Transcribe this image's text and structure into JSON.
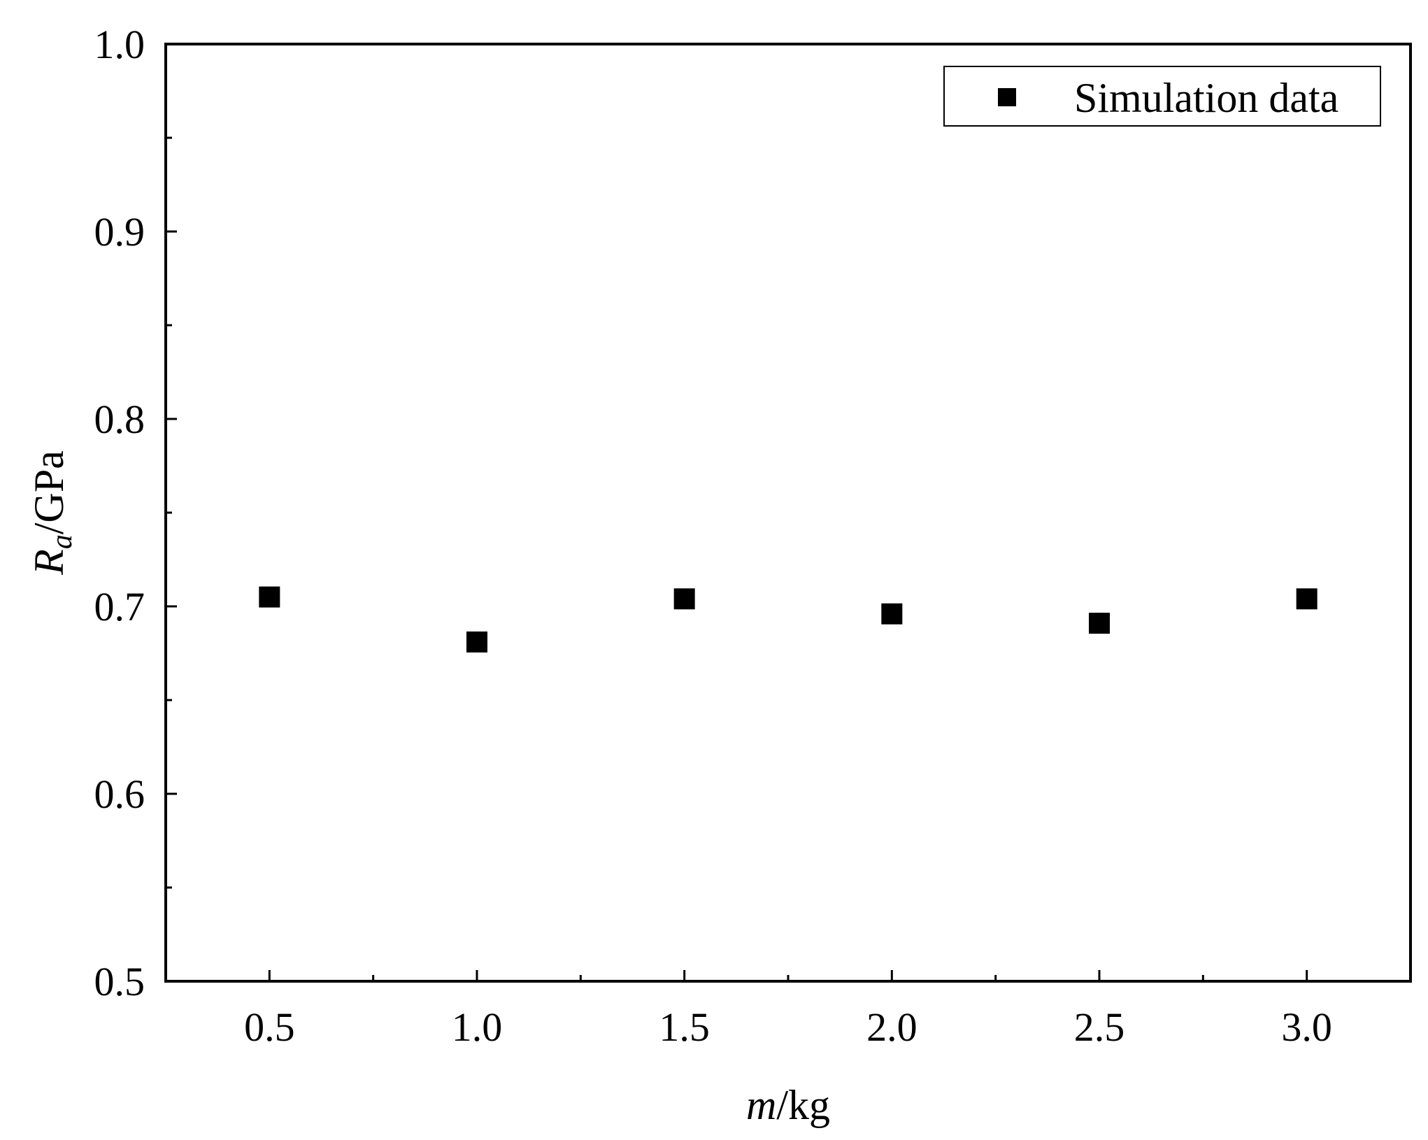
{
  "chart_data": {
    "type": "scatter",
    "x_axis": {
      "label_var": "m",
      "label_unit": "/kg",
      "range": [
        0.25,
        3.25
      ],
      "ticks": [
        "0.5",
        "1.0",
        "1.5",
        "2.0",
        "2.5",
        "3.0"
      ],
      "tick_values": [
        0.5,
        1.0,
        1.5,
        2.0,
        2.5,
        3.0
      ],
      "minor_ticks": [
        0.75,
        1.25,
        1.75,
        2.25,
        2.75
      ]
    },
    "y_axis": {
      "label_var": "R",
      "label_sub": "a",
      "label_unit": "/GPa",
      "range": [
        0.5,
        1.0
      ],
      "ticks": [
        "0.5",
        "0.6",
        "0.7",
        "0.8",
        "0.9",
        "1.0"
      ],
      "tick_values": [
        0.5,
        0.6,
        0.7,
        0.8,
        0.9,
        1.0
      ],
      "minor_ticks": [
        0.55,
        0.65,
        0.75,
        0.85,
        0.95
      ]
    },
    "series": [
      {
        "name": "Simulation data",
        "marker": "square",
        "color": "#000000",
        "x": [
          0.5,
          1.0,
          1.5,
          2.0,
          2.5,
          3.0
        ],
        "y": [
          0.705,
          0.681,
          0.704,
          0.696,
          0.691,
          0.704
        ]
      }
    ],
    "legend": {
      "position": "top-right"
    },
    "grid": false
  }
}
